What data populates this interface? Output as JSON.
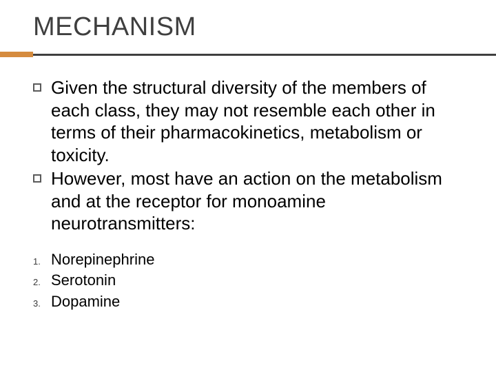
{
  "slide": {
    "title": "MECHANISM",
    "accent_color": "#d58b3e",
    "accent_width": 48,
    "divider_color": "#3f3f3f",
    "title_color": "#3f3f3f",
    "background_color": "#ffffff",
    "bullets": [
      {
        "text": "Given the structural diversity of the members of each class, they may not resemble each other in terms of their pharmacokinetics, metabolism or toxicity."
      },
      {
        "text": "However, most have an action on the metabolism and at the receptor for monoamine neurotransmitters:"
      }
    ],
    "numbered": [
      {
        "num": "1.",
        "text": "Norepinephrine"
      },
      {
        "num": "2.",
        "text": "Serotonin"
      },
      {
        "num": "3.",
        "text": "Dopamine"
      }
    ],
    "title_fontsize": 38,
    "bullet_fontsize": 26,
    "numbered_fontsize": 22,
    "numbered_marker_fontsize": 13
  }
}
